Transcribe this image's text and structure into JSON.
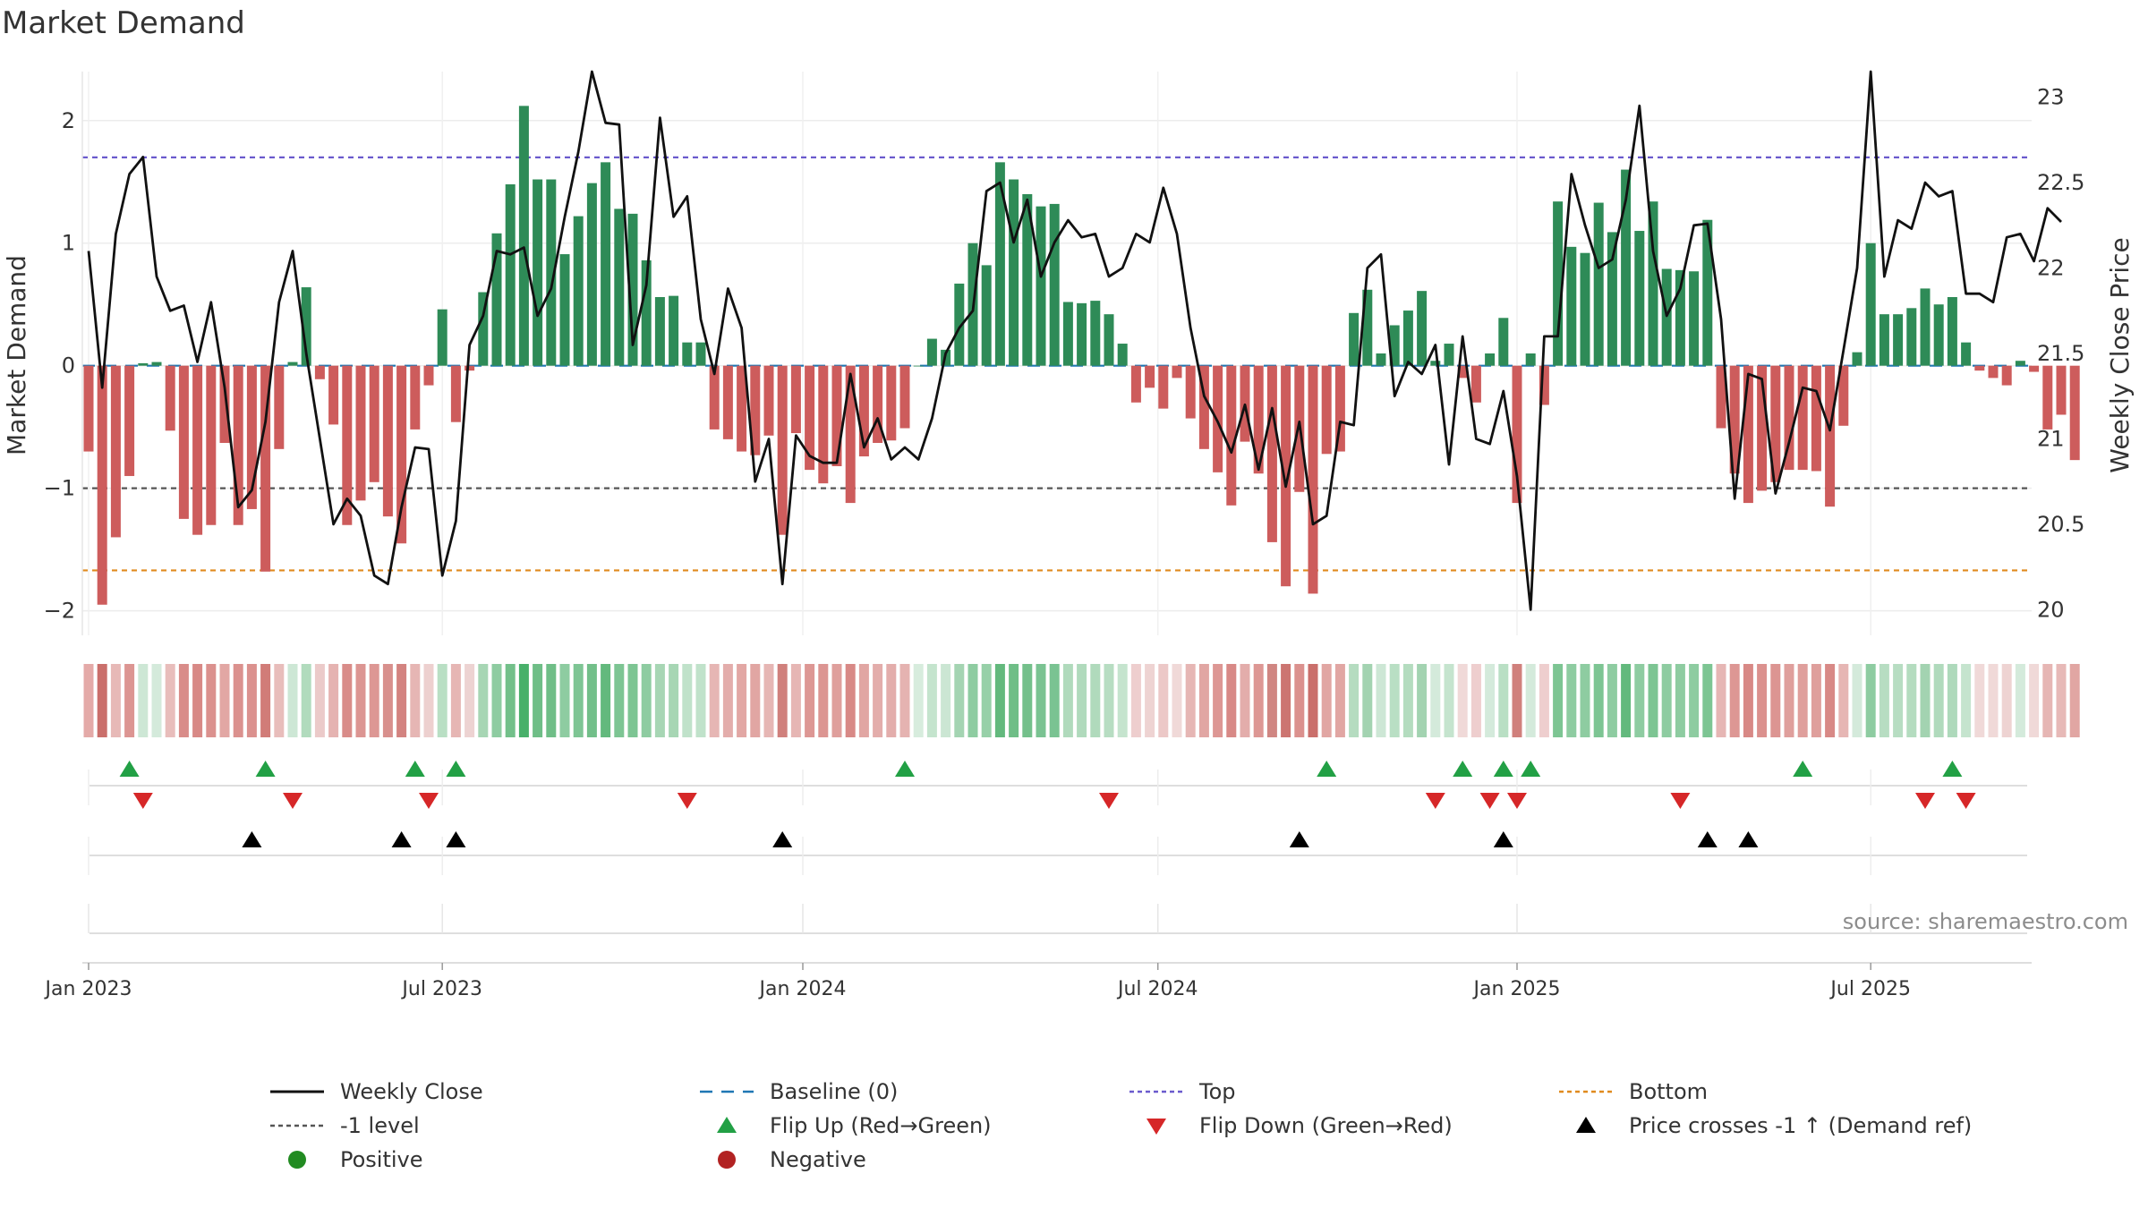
{
  "chart_data": {
    "type": "bar",
    "title": "Market Demand",
    "source_note": "source: sharemaestro.com",
    "ylabel_left": "Market Demand",
    "ylabel_right": "Weekly Close Price",
    "ylim_left": [
      -2.2,
      2.4
    ],
    "ylim_right": [
      19.85,
      23.15
    ],
    "yticks_left": [
      {
        "v": 2,
        "label": "2"
      },
      {
        "v": 1,
        "label": "1"
      },
      {
        "v": 0,
        "label": "0"
      },
      {
        "v": -1,
        "label": "−1"
      },
      {
        "v": -2,
        "label": "−2"
      }
    ],
    "yticks_right": [
      {
        "v": 23,
        "label": "23"
      },
      {
        "v": 22.5,
        "label": "22.5"
      },
      {
        "v": 22,
        "label": "22"
      },
      {
        "v": 21.5,
        "label": "21.5"
      },
      {
        "v": 21,
        "label": "21"
      },
      {
        "v": 20.5,
        "label": "20.5"
      },
      {
        "v": 20,
        "label": "20"
      }
    ],
    "xticks": [
      {
        "week": 1,
        "label": "Jan 2023"
      },
      {
        "week": 27,
        "label": "Jul 2023"
      },
      {
        "week": 53.5,
        "label": "Jan 2024"
      },
      {
        "week": 79.6,
        "label": "Jul 2024"
      },
      {
        "week": 106,
        "label": "Jan 2025"
      },
      {
        "week": 132,
        "label": "Jul 2025"
      }
    ],
    "reference_lines": {
      "top": 1.7,
      "bottom": -1.67,
      "minus_one": -1,
      "baseline": 0
    },
    "colors": {
      "positive": "#2e8b57",
      "negative": "#cd5c5c",
      "close": "#111111",
      "top": "#6a5acd",
      "bottom": "#e08a1e",
      "minus_one": "#555555",
      "baseline": "#1f77b4",
      "flip_up": "#22a045",
      "flip_down": "#d62728",
      "cross": "#000000",
      "legend_positive": "#228b22",
      "legend_negative": "#b22222"
    },
    "demand": [
      -0.7,
      -1.95,
      -1.4,
      -0.9,
      0.02,
      0.03,
      -0.53,
      -1.25,
      -1.38,
      -1.3,
      -0.63,
      -1.3,
      -1.17,
      -1.68,
      -0.68,
      0.03,
      0.64,
      -0.11,
      -0.48,
      -1.3,
      -1.1,
      -0.95,
      -1.23,
      -1.45,
      -0.52,
      -0.16,
      0.46,
      -0.46,
      -0.04,
      0.6,
      1.08,
      1.48,
      2.12,
      1.52,
      1.52,
      0.91,
      1.22,
      1.49,
      1.66,
      1.28,
      1.24,
      0.86,
      0.56,
      0.57,
      0.19,
      0.19,
      -0.52,
      -0.6,
      -0.7,
      -0.73,
      -0.57,
      -1.38,
      -0.55,
      -0.85,
      -0.96,
      -0.82,
      -1.12,
      -0.74,
      -0.63,
      -0.61,
      -0.51,
      0.0,
      0.22,
      0.13,
      0.67,
      1.0,
      0.82,
      1.66,
      1.52,
      1.4,
      1.3,
      1.32,
      0.52,
      0.51,
      0.53,
      0.42,
      0.18,
      -0.3,
      -0.18,
      -0.35,
      -0.1,
      -0.43,
      -0.68,
      -0.87,
      -1.14,
      -0.62,
      -0.88,
      -1.44,
      -1.8,
      -1.03,
      -1.86,
      -0.72,
      -0.7,
      0.43,
      0.62,
      0.1,
      0.33,
      0.45,
      0.61,
      0.04,
      0.18,
      -0.1,
      -0.3,
      0.1,
      0.39,
      -1.12,
      0.1,
      -0.32,
      1.34,
      0.97,
      0.92,
      1.33,
      1.09,
      1.6,
      1.1,
      1.34,
      0.79,
      0.78,
      0.77,
      1.19,
      -0.51,
      -0.88,
      -1.12,
      -1.02,
      -0.95,
      -0.85,
      -0.85,
      -0.86,
      -1.15,
      -0.49,
      0.11,
      1.0,
      0.42,
      0.42,
      0.47,
      0.63,
      0.5,
      0.56,
      0.19,
      -0.04,
      -0.1,
      -0.16,
      0.04,
      -0.05,
      -0.52,
      -0.4,
      -0.77
    ],
    "close": [
      22.1,
      21.3,
      22.2,
      22.55,
      22.65,
      21.95,
      21.75,
      21.78,
      21.45,
      21.8,
      21.3,
      20.6,
      20.7,
      21.1,
      21.8,
      22.1,
      21.5,
      21.0,
      20.5,
      20.65,
      20.55,
      20.2,
      20.15,
      20.6,
      20.95,
      20.94,
      20.2,
      20.52,
      21.55,
      21.72,
      22.1,
      22.08,
      22.12,
      21.72,
      21.88,
      22.3,
      22.68,
      23.15,
      22.85,
      22.84,
      21.55,
      21.9,
      22.88,
      22.3,
      22.42,
      21.7,
      21.38,
      21.88,
      21.65,
      20.75,
      21.0,
      20.15,
      21.02,
      20.9,
      20.86,
      20.86,
      21.38,
      20.95,
      21.12,
      20.88,
      20.95,
      20.88,
      21.12,
      21.5,
      21.65,
      21.75,
      22.45,
      22.5,
      22.15,
      22.4,
      21.95,
      22.15,
      22.28,
      22.18,
      22.2,
      21.95,
      22.0,
      22.2,
      22.15,
      22.47,
      22.2,
      21.65,
      21.25,
      21.1,
      20.92,
      21.2,
      20.82,
      21.18,
      20.72,
      21.1,
      20.5,
      20.55,
      21.1,
      21.08,
      22.0,
      22.08,
      21.25,
      21.45,
      21.38,
      21.55,
      20.85,
      21.6,
      21.0,
      20.97,
      21.28,
      20.78,
      20.0,
      21.6,
      21.6,
      22.55,
      22.25,
      22.0,
      22.05,
      22.4,
      22.95,
      22.1,
      21.72,
      21.88,
      22.25,
      22.26,
      21.7,
      20.65,
      21.38,
      21.35,
      20.68,
      20.98,
      21.3,
      21.28,
      21.05,
      21.52,
      22.0,
      23.15,
      21.95,
      22.28,
      22.23,
      22.5,
      22.42,
      22.45,
      21.85,
      21.85,
      21.8,
      22.18,
      22.2,
      22.04,
      22.35,
      22.27
    ],
    "strip_colors": [
      "#e4aaa8",
      "#ca6f6b",
      "#e7b9b7",
      "#dc9592",
      "#cde7d5",
      "#d4eadb",
      "#e8bdbb",
      "#d98c89",
      "#d88986",
      "#db918e",
      "#e2a7a4",
      "#db918e",
      "#db918e",
      "#d17c78",
      "#e8bdbb",
      "#cde7d5",
      "#b1dbbd",
      "#ebcac9",
      "#e5b3b1",
      "#d98c89",
      "#dc9592",
      "#dd9794",
      "#d8908d",
      "#d38380",
      "#e6b6b4",
      "#edd0cf",
      "#b9dfc4",
      "#e6b6b4",
      "#edd3d2",
      "#a7d6b4",
      "#8ecca1",
      "#73c08a",
      "#48b06a",
      "#6fbe87",
      "#6fbe87",
      "#8ecca1",
      "#7ec594",
      "#72bf89",
      "#63b97d",
      "#7dc593",
      "#7dc593",
      "#8ecca1",
      "#a7d6b4",
      "#a7d6b4",
      "#c0e2ca",
      "#c0e2ca",
      "#e6b6b4",
      "#e3adab",
      "#e2a7a4",
      "#e1a6a3",
      "#e6b6b4",
      "#d0807c",
      "#e6b6b4",
      "#dd9794",
      "#dc9592",
      "#df9f9c",
      "#d88986",
      "#e1a6a3",
      "#e3adab",
      "#e3adab",
      "#e5b3b1",
      "#d7ecdd",
      "#c4e4cd",
      "#cbe6d3",
      "#a4d4b2",
      "#8ecca1",
      "#97d0a8",
      "#63b97d",
      "#6fbe87",
      "#74c08b",
      "#7ac392",
      "#7ac392",
      "#b0dabc",
      "#b0dabc",
      "#b0dabc",
      "#b7ddc2",
      "#c5e4ce",
      "#eecece",
      "#eed3d2",
      "#ecc8c7",
      "#f0d9d8",
      "#e6b6b4",
      "#e1a6a3",
      "#dd9794",
      "#d88986",
      "#e3adab",
      "#dd9794",
      "#d08682",
      "#cc7571",
      "#db918e",
      "#ca6f6b",
      "#e1a6a3",
      "#e1a6a3",
      "#b5dcc0",
      "#a3d3b1",
      "#cde7d5",
      "#b9dfc4",
      "#b4dcbf",
      "#a3d3b1",
      "#d4eadb",
      "#c5e4ce",
      "#f0d9d8",
      "#eecece",
      "#d4eadb",
      "#b9dfc4",
      "#d0807c",
      "#d4eadb",
      "#eecece",
      "#7dc593",
      "#8ecca1",
      "#8ecca1",
      "#7dc593",
      "#8ecca1",
      "#63b97d",
      "#8ecca1",
      "#7dc593",
      "#8ecca1",
      "#8ecca1",
      "#8ecca1",
      "#7dc593",
      "#e6b6b4",
      "#dd9794",
      "#d88986",
      "#db918e",
      "#dc9592",
      "#df9f9c",
      "#df9f9c",
      "#df9f9c",
      "#d88986",
      "#e6b6b4",
      "#d4eadb",
      "#8ecca1",
      "#b7ddc2",
      "#b7ddc2",
      "#b4dcbf",
      "#a3d3b1",
      "#b0dabc",
      "#aed9bb",
      "#c5e4ce",
      "#f0d9d8",
      "#f0d9d8",
      "#eed3d2",
      "#d4eadb",
      "#f0d9d8",
      "#e6b6b4",
      "#e7b9b7",
      "#e1a6a3"
    ],
    "flip_up_weeks": [
      4,
      14,
      25,
      28,
      61,
      92,
      102,
      105,
      107,
      127,
      138
    ],
    "flip_down_weeks": [
      5,
      16,
      26,
      45,
      76,
      100,
      104,
      106,
      118,
      136,
      139
    ],
    "price_cross_weeks": [
      13,
      24,
      28,
      52,
      90,
      105,
      120,
      123
    ],
    "legend": [
      {
        "key": "close",
        "label": "Weekly Close"
      },
      {
        "key": "baseline",
        "label": "Baseline (0)"
      },
      {
        "key": "top",
        "label": "Top"
      },
      {
        "key": "bottom",
        "label": "Bottom"
      },
      {
        "key": "minus_one",
        "label": "-1 level"
      },
      {
        "key": "flip_up",
        "label": "Flip Up (Red→Green)"
      },
      {
        "key": "flip_down",
        "label": "Flip Down (Green→Red)"
      },
      {
        "key": "cross",
        "label": "Price crosses -1 ↑ (Demand ref)"
      },
      {
        "key": "positive",
        "label": "Positive"
      },
      {
        "key": "negative",
        "label": "Negative"
      }
    ]
  }
}
